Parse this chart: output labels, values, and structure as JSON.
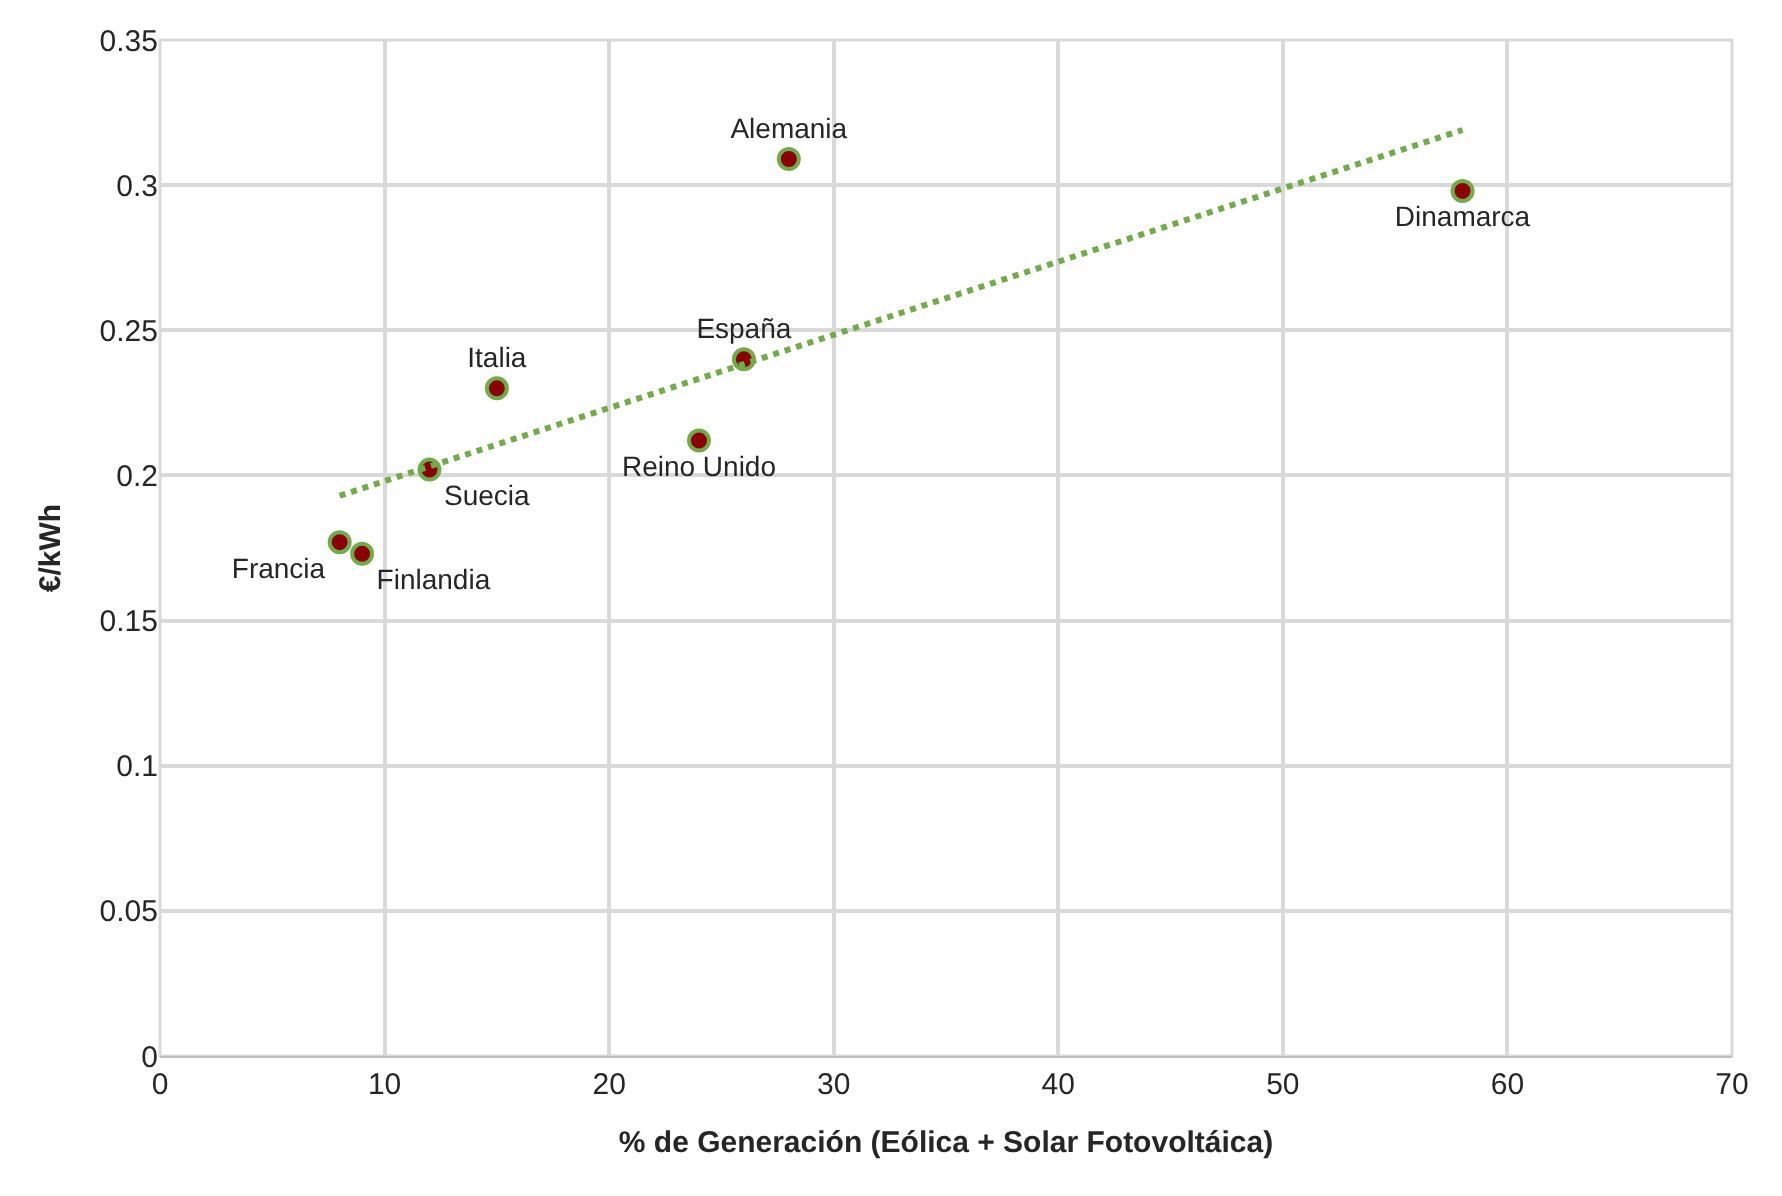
{
  "chart_data": {
    "type": "scatter",
    "xlabel": "% de Generación (Eólica + Solar Fotovoltáica)",
    "ylabel": "€/kWh",
    "series": [
      {
        "color": "#8b0000",
        "marker": "circle",
        "x": [
          8,
          9,
          12,
          15,
          24,
          26,
          28,
          58
        ],
        "values": [
          0.177,
          0.173,
          0.202,
          0.23,
          0.212,
          0.24,
          0.309,
          0.298
        ],
        "value_labels": [
          "Francia",
          "Finlandia",
          "Suecia",
          "Italia",
          "Reino Unido",
          "España",
          "Alemania",
          "Dinamarca"
        ]
      },
      {
        "type": "line",
        "color": "#70ad47",
        "line_style": "dotted",
        "x": [
          8,
          58
        ],
        "values": [
          0.193,
          0.319
        ]
      }
    ],
    "xlim": [
      0,
      70
    ],
    "xticks": [
      0,
      10,
      20,
      30,
      40,
      50,
      60,
      70
    ],
    "ylim": [
      0,
      0.35
    ],
    "yticks": [
      0,
      0.05,
      0.1,
      0.15,
      0.2,
      0.25,
      0.3,
      0.35
    ],
    "grid": true
  }
}
